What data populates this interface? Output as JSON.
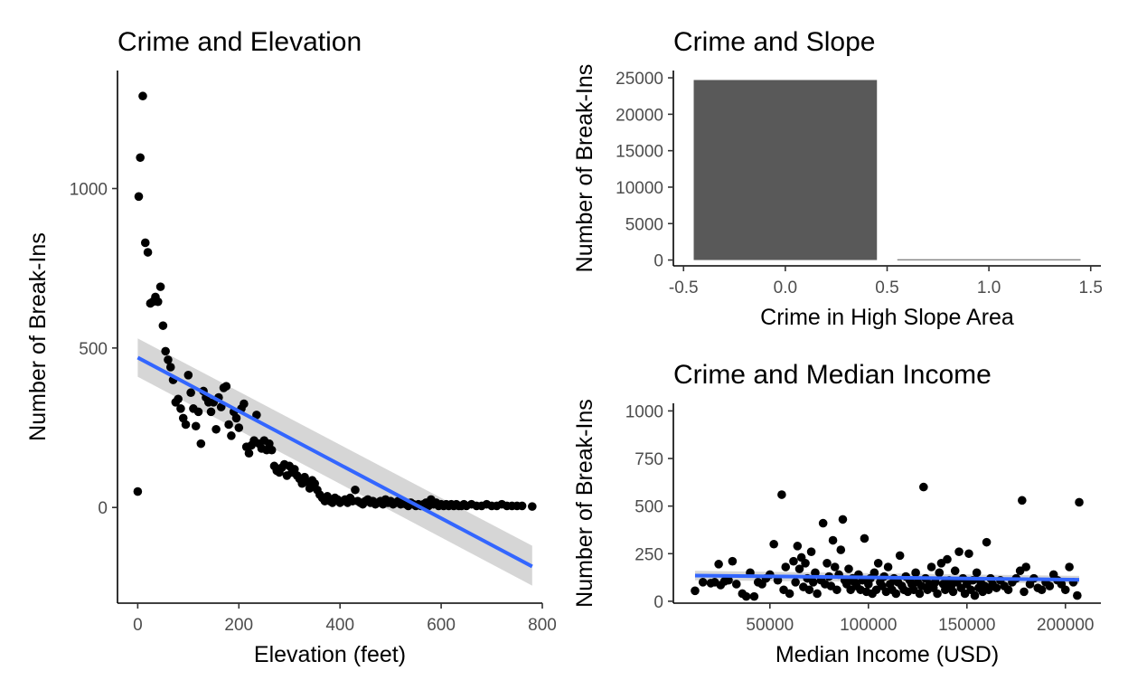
{
  "chart_data": [
    {
      "type": "scatter",
      "title": "Crime and Elevation",
      "xlabel": "Elevation (feet)",
      "ylabel": "Number of Break-Ins",
      "xlim": [
        -40,
        800
      ],
      "ylim": [
        -300,
        1370
      ],
      "xticks": [
        0,
        200,
        400,
        600,
        800
      ],
      "yticks": [
        0,
        500,
        1000
      ],
      "grid": false,
      "points": [
        [
          0,
          50
        ],
        [
          2,
          975
        ],
        [
          5,
          1097
        ],
        [
          10,
          1290
        ],
        [
          15,
          830
        ],
        [
          20,
          800
        ],
        [
          25,
          640
        ],
        [
          30,
          645
        ],
        [
          35,
          660
        ],
        [
          40,
          645
        ],
        [
          45,
          692
        ],
        [
          50,
          570
        ],
        [
          55,
          490
        ],
        [
          60,
          463
        ],
        [
          65,
          440
        ],
        [
          70,
          400
        ],
        [
          75,
          330
        ],
        [
          80,
          340
        ],
        [
          85,
          310
        ],
        [
          90,
          280
        ],
        [
          95,
          260
        ],
        [
          100,
          415
        ],
        [
          105,
          360
        ],
        [
          110,
          310
        ],
        [
          115,
          255
        ],
        [
          120,
          300
        ],
        [
          125,
          200
        ],
        [
          130,
          365
        ],
        [
          135,
          345
        ],
        [
          140,
          330
        ],
        [
          145,
          300
        ],
        [
          150,
          330
        ],
        [
          155,
          245
        ],
        [
          160,
          345
        ],
        [
          165,
          315
        ],
        [
          170,
          375
        ],
        [
          175,
          380
        ],
        [
          180,
          260
        ],
        [
          185,
          225
        ],
        [
          190,
          300
        ],
        [
          195,
          280
        ],
        [
          200,
          250
        ],
        [
          205,
          310
        ],
        [
          210,
          325
        ],
        [
          215,
          190
        ],
        [
          220,
          170
        ],
        [
          225,
          195
        ],
        [
          230,
          210
        ],
        [
          235,
          290
        ],
        [
          240,
          200
        ],
        [
          245,
          185
        ],
        [
          250,
          210
        ],
        [
          255,
          180
        ],
        [
          260,
          200
        ],
        [
          265,
          180
        ],
        [
          270,
          130
        ],
        [
          275,
          115
        ],
        [
          280,
          110
        ],
        [
          285,
          125
        ],
        [
          290,
          135
        ],
        [
          295,
          100
        ],
        [
          300,
          130
        ],
        [
          305,
          110
        ],
        [
          310,
          120
        ],
        [
          315,
          100
        ],
        [
          320,
          90
        ],
        [
          325,
          75
        ],
        [
          330,
          95
        ],
        [
          335,
          80
        ],
        [
          340,
          60
        ],
        [
          345,
          85
        ],
        [
          350,
          75
        ],
        [
          355,
          55
        ],
        [
          360,
          40
        ],
        [
          365,
          30
        ],
        [
          370,
          20
        ],
        [
          375,
          35
        ],
        [
          380,
          20
        ],
        [
          385,
          15
        ],
        [
          390,
          30
        ],
        [
          395,
          25
        ],
        [
          400,
          15
        ],
        [
          405,
          20
        ],
        [
          410,
          25
        ],
        [
          415,
          15
        ],
        [
          420,
          30
        ],
        [
          425,
          20
        ],
        [
          430,
          55
        ],
        [
          435,
          20
        ],
        [
          440,
          15
        ],
        [
          445,
          10
        ],
        [
          450,
          20
        ],
        [
          455,
          25
        ],
        [
          460,
          15
        ],
        [
          465,
          20
        ],
        [
          470,
          10
        ],
        [
          475,
          15
        ],
        [
          480,
          20
        ],
        [
          485,
          10
        ],
        [
          490,
          25
        ],
        [
          495,
          15
        ],
        [
          500,
          20
        ],
        [
          505,
          10
        ],
        [
          510,
          15
        ],
        [
          515,
          20
        ],
        [
          520,
          10
        ],
        [
          525,
          15
        ],
        [
          530,
          10
        ],
        [
          535,
          5
        ],
        [
          540,
          15
        ],
        [
          545,
          10
        ],
        [
          550,
          5
        ],
        [
          555,
          10
        ],
        [
          560,
          5
        ],
        [
          565,
          10
        ],
        [
          570,
          15
        ],
        [
          575,
          5
        ],
        [
          580,
          25
        ],
        [
          585,
          10
        ],
        [
          590,
          15
        ],
        [
          595,
          5
        ],
        [
          600,
          10
        ],
        [
          605,
          5
        ],
        [
          610,
          10
        ],
        [
          615,
          5
        ],
        [
          620,
          10
        ],
        [
          625,
          5
        ],
        [
          630,
          10
        ],
        [
          635,
          5
        ],
        [
          640,
          5
        ],
        [
          645,
          10
        ],
        [
          650,
          5
        ],
        [
          660,
          10
        ],
        [
          670,
          5
        ],
        [
          680,
          5
        ],
        [
          690,
          10
        ],
        [
          700,
          5
        ],
        [
          710,
          5
        ],
        [
          720,
          10
        ],
        [
          730,
          5
        ],
        [
          740,
          5
        ],
        [
          750,
          5
        ],
        [
          760,
          5
        ],
        [
          780,
          3
        ]
      ],
      "trend": {
        "x": [
          0,
          780
        ],
        "y": [
          470,
          -185
        ],
        "se_low": [
          410,
          -245
        ],
        "se_high": [
          530,
          -120
        ]
      }
    },
    {
      "type": "bar",
      "title": "Crime and Slope",
      "xlabel": "Crime in High Slope Area",
      "ylabel": "Number of Break-Ins",
      "categories": [
        0,
        1
      ],
      "values": [
        24700,
        100
      ],
      "bar_width": 0.9,
      "xlim": [
        -0.55,
        1.55
      ],
      "ylim": [
        -800,
        26000
      ],
      "xticks": [
        -0.5,
        0.0,
        0.5,
        1.0,
        1.5
      ],
      "xticklabels": [
        "-0.5",
        "0.0",
        "0.5",
        "1.0",
        "1.5"
      ],
      "yticks": [
        0,
        5000,
        10000,
        15000,
        20000,
        25000
      ],
      "grid": false
    },
    {
      "type": "scatter",
      "title": "Crime and Median Income",
      "xlabel": "Median Income (USD)",
      "ylabel": "Number of Break-Ins",
      "xlim": [
        1000,
        218000
      ],
      "ylim": [
        -10,
        1040
      ],
      "xticks": [
        50000,
        100000,
        150000,
        200000
      ],
      "yticks": [
        0,
        250,
        500,
        750,
        1000
      ],
      "grid": false,
      "points": [
        [
          12000,
          55
        ],
        [
          16000,
          100
        ],
        [
          20000,
          95
        ],
        [
          22000,
          100
        ],
        [
          24000,
          195
        ],
        [
          25000,
          85
        ],
        [
          27000,
          105
        ],
        [
          29000,
          110
        ],
        [
          31000,
          210
        ],
        [
          33000,
          90
        ],
        [
          36000,
          40
        ],
        [
          38000,
          25
        ],
        [
          40000,
          150
        ],
        [
          42000,
          25
        ],
        [
          44000,
          100
        ],
        [
          46000,
          90
        ],
        [
          48000,
          120
        ],
        [
          50000,
          140
        ],
        [
          52000,
          300
        ],
        [
          54000,
          110
        ],
        [
          56000,
          560
        ],
        [
          57000,
          60
        ],
        [
          58000,
          180
        ],
        [
          60000,
          40
        ],
        [
          62000,
          210
        ],
        [
          63000,
          100
        ],
        [
          64000,
          290
        ],
        [
          65000,
          170
        ],
        [
          66000,
          230
        ],
        [
          67000,
          75
        ],
        [
          68000,
          200
        ],
        [
          69000,
          120
        ],
        [
          70000,
          60
        ],
        [
          71000,
          260
        ],
        [
          72000,
          100
        ],
        [
          73000,
          150
        ],
        [
          74000,
          40
        ],
        [
          76000,
          110
        ],
        [
          77000,
          410
        ],
        [
          78000,
          90
        ],
        [
          79000,
          200
        ],
        [
          80000,
          130
        ],
        [
          81000,
          80
        ],
        [
          82000,
          320
        ],
        [
          83000,
          180
        ],
        [
          84000,
          60
        ],
        [
          85000,
          140
        ],
        [
          86000,
          270
        ],
        [
          87000,
          430
        ],
        [
          88000,
          110
        ],
        [
          89000,
          90
        ],
        [
          90000,
          170
        ],
        [
          91000,
          60
        ],
        [
          92000,
          120
        ],
        [
          93000,
          100
        ],
        [
          94000,
          80
        ],
        [
          95000,
          140
        ],
        [
          96000,
          60
        ],
        [
          97000,
          110
        ],
        [
          98000,
          330
        ],
        [
          99000,
          50
        ],
        [
          100000,
          90
        ],
        [
          101000,
          120
        ],
        [
          102000,
          40
        ],
        [
          103000,
          150
        ],
        [
          104000,
          60
        ],
        [
          105000,
          200
        ],
        [
          106000,
          100
        ],
        [
          107000,
          80
        ],
        [
          108000,
          130
        ],
        [
          109000,
          50
        ],
        [
          110000,
          180
        ],
        [
          111000,
          90
        ],
        [
          112000,
          60
        ],
        [
          113000,
          120
        ],
        [
          114000,
          40
        ],
        [
          115000,
          100
        ],
        [
          116000,
          240
        ],
        [
          117000,
          80
        ],
        [
          118000,
          60
        ],
        [
          119000,
          130
        ],
        [
          120000,
          50
        ],
        [
          121000,
          110
        ],
        [
          122000,
          90
        ],
        [
          123000,
          60
        ],
        [
          124000,
          150
        ],
        [
          125000,
          100
        ],
        [
          126000,
          40
        ],
        [
          127000,
          80
        ],
        [
          128000,
          600
        ],
        [
          129000,
          120
        ],
        [
          130000,
          60
        ],
        [
          131000,
          90
        ],
        [
          132000,
          180
        ],
        [
          133000,
          70
        ],
        [
          134000,
          100
        ],
        [
          135000,
          40
        ],
        [
          136000,
          150
        ],
        [
          137000,
          200
        ],
        [
          138000,
          90
        ],
        [
          139000,
          60
        ],
        [
          140000,
          220
        ],
        [
          141000,
          110
        ],
        [
          142000,
          80
        ],
        [
          143000,
          50
        ],
        [
          144000,
          160
        ],
        [
          145000,
          100
        ],
        [
          146000,
          260
        ],
        [
          147000,
          70
        ],
        [
          148000,
          120
        ],
        [
          149000,
          40
        ],
        [
          150000,
          90
        ],
        [
          151000,
          250
        ],
        [
          152000,
          60
        ],
        [
          153000,
          110
        ],
        [
          154000,
          30
        ],
        [
          155000,
          150
        ],
        [
          156000,
          70
        ],
        [
          157000,
          100
        ],
        [
          158000,
          50
        ],
        [
          159000,
          80
        ],
        [
          160000,
          310
        ],
        [
          161000,
          60
        ],
        [
          162000,
          120
        ],
        [
          163000,
          90
        ],
        [
          165000,
          70
        ],
        [
          167000,
          110
        ],
        [
          169000,
          80
        ],
        [
          171000,
          60
        ],
        [
          173000,
          100
        ],
        [
          175000,
          120
        ],
        [
          177000,
          160
        ],
        [
          178000,
          530
        ],
        [
          179000,
          50
        ],
        [
          180000,
          180
        ],
        [
          182000,
          90
        ],
        [
          184000,
          120
        ],
        [
          186000,
          70
        ],
        [
          188000,
          60
        ],
        [
          190000,
          100
        ],
        [
          192000,
          80
        ],
        [
          194000,
          140
        ],
        [
          196000,
          110
        ],
        [
          198000,
          90
        ],
        [
          200000,
          60
        ],
        [
          202000,
          180
        ],
        [
          204000,
          100
        ],
        [
          206000,
          30
        ],
        [
          207000,
          520
        ]
      ],
      "trend": {
        "x": [
          12000,
          207000
        ],
        "y": [
          135,
          113
        ],
        "se_low": [
          110,
          93
        ],
        "se_high": [
          160,
          133
        ]
      }
    }
  ]
}
